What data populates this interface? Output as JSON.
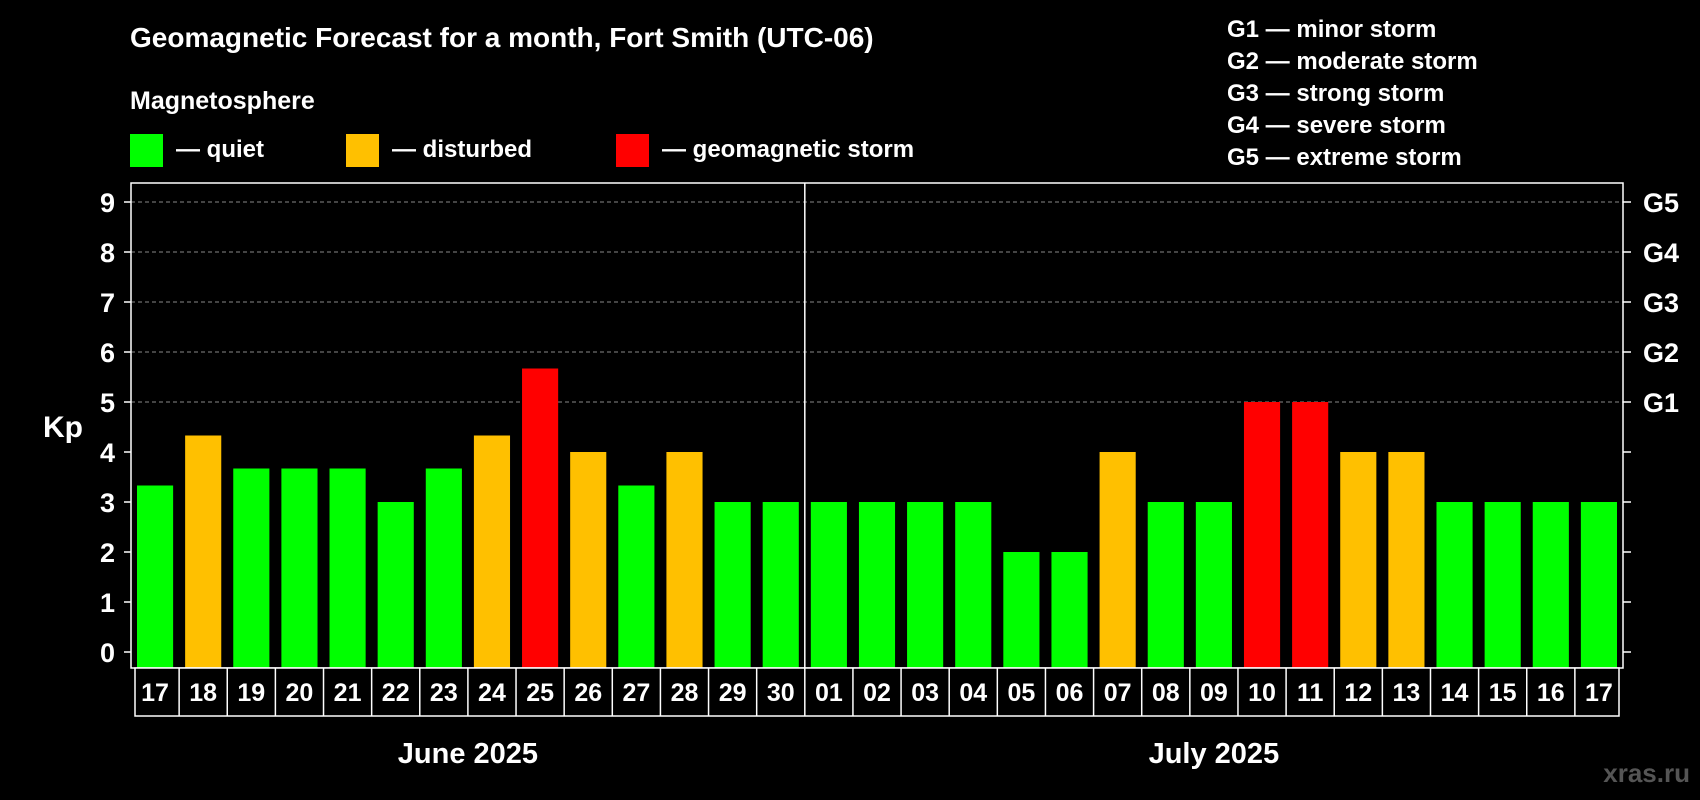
{
  "chart_data": {
    "type": "bar",
    "title": "Geomagnetic Forecast for a month, Fort Smith (UTC-06)",
    "legend_title": "Magnetosphere",
    "legend": [
      {
        "label": "— quiet",
        "color": "#00ff00"
      },
      {
        "label": "— disturbed",
        "color": "#ffc000"
      },
      {
        "label": "— geomagnetic storm",
        "color": "#ff0000"
      }
    ],
    "storm_scale": [
      "G1 — minor storm",
      "G2 — moderate storm",
      "G3 — strong storm",
      "G4 — severe storm",
      "G5 — extreme storm"
    ],
    "ylabel": "Kp",
    "ylim": [
      0,
      9
    ],
    "yticks": [
      "0",
      "1",
      "2",
      "3",
      "4",
      "5",
      "6",
      "7",
      "8",
      "9"
    ],
    "right_ticks": [
      {
        "value": 5,
        "label": "G1"
      },
      {
        "value": 6,
        "label": "G2"
      },
      {
        "value": 7,
        "label": "G3"
      },
      {
        "value": 8,
        "label": "G4"
      },
      {
        "value": 9,
        "label": "G5"
      }
    ],
    "grid": "dashed at 5-9",
    "categories": [
      "17",
      "18",
      "19",
      "20",
      "21",
      "22",
      "23",
      "24",
      "25",
      "26",
      "27",
      "28",
      "29",
      "30",
      "01",
      "02",
      "03",
      "04",
      "05",
      "06",
      "07",
      "08",
      "09",
      "10",
      "11",
      "12",
      "13",
      "14",
      "15",
      "16",
      "17"
    ],
    "values": [
      3.33,
      4.33,
      3.67,
      3.67,
      3.67,
      3.0,
      3.67,
      4.33,
      5.67,
      4.0,
      3.33,
      4.0,
      3.0,
      3.0,
      3.0,
      3.0,
      3.0,
      3.0,
      2.0,
      2.0,
      4.0,
      3.0,
      3.0,
      5.0,
      5.0,
      4.0,
      4.0,
      3.0,
      3.0,
      3.0,
      3.0
    ],
    "status": [
      "quiet",
      "disturbed",
      "quiet",
      "quiet",
      "quiet",
      "quiet",
      "quiet",
      "disturbed",
      "storm",
      "disturbed",
      "quiet",
      "disturbed",
      "quiet",
      "quiet",
      "quiet",
      "quiet",
      "quiet",
      "quiet",
      "quiet",
      "quiet",
      "disturbed",
      "quiet",
      "quiet",
      "storm",
      "storm",
      "disturbed",
      "disturbed",
      "quiet",
      "quiet",
      "quiet",
      "quiet"
    ],
    "months": [
      {
        "label": "June 2025",
        "start_index": 0,
        "end_index": 13
      },
      {
        "label": "July 2025",
        "start_index": 14,
        "end_index": 30
      }
    ],
    "colors": {
      "quiet": "#00ff00",
      "disturbed": "#ffc000",
      "storm": "#ff0000"
    },
    "watermark": "xras.ru"
  }
}
